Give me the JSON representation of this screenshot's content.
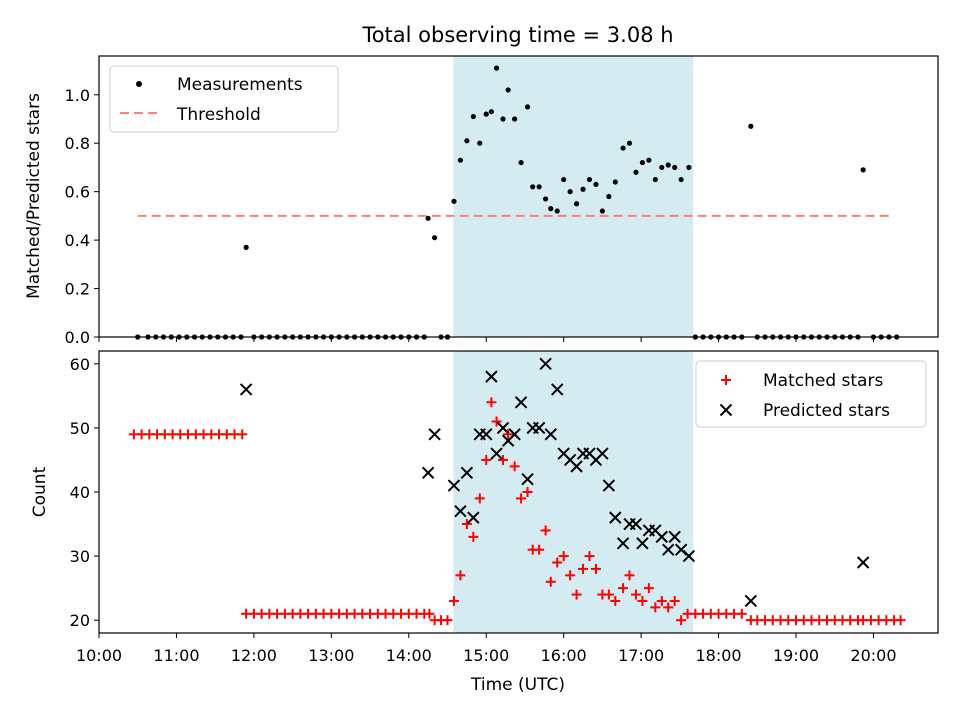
{
  "title": "Total observing time = 3.08 h",
  "chart_data": [
    {
      "type": "scatter",
      "ylabel": "Matched/Predicted stars",
      "xlim": [
        "10:00",
        "20:50"
      ],
      "ylim": [
        0,
        1.16
      ],
      "yticks": [
        0.0,
        0.2,
        0.4,
        0.6,
        0.8,
        1.0
      ],
      "ytick_labels": [
        "0.0",
        "0.2",
        "0.4",
        "0.6",
        "0.8",
        "1.0"
      ],
      "shaded_span": [
        "14:35",
        "17:40"
      ],
      "shade_color": "#add8e6",
      "legend_position": "upper left",
      "series": [
        {
          "name": "Measurements",
          "marker": "dot",
          "color": "#000000",
          "points": [
            [
              "10:30",
              0
            ],
            [
              "10:38",
              0
            ],
            [
              "10:44",
              0
            ],
            [
              "10:50",
              0
            ],
            [
              "10:56",
              0
            ],
            [
              "11:02",
              0
            ],
            [
              "11:08",
              0
            ],
            [
              "11:14",
              0
            ],
            [
              "11:20",
              0
            ],
            [
              "11:26",
              0
            ],
            [
              "11:32",
              0
            ],
            [
              "11:38",
              0
            ],
            [
              "11:44",
              0
            ],
            [
              "11:50",
              0
            ],
            [
              "11:54",
              0.37
            ],
            [
              "12:00",
              0
            ],
            [
              "12:06",
              0
            ],
            [
              "12:12",
              0
            ],
            [
              "12:18",
              0
            ],
            [
              "12:24",
              0
            ],
            [
              "12:30",
              0
            ],
            [
              "12:36",
              0
            ],
            [
              "12:42",
              0
            ],
            [
              "12:48",
              0
            ],
            [
              "12:54",
              0
            ],
            [
              "13:00",
              0
            ],
            [
              "13:06",
              0
            ],
            [
              "13:12",
              0
            ],
            [
              "13:18",
              0
            ],
            [
              "13:24",
              0
            ],
            [
              "13:30",
              0
            ],
            [
              "13:36",
              0
            ],
            [
              "13:42",
              0
            ],
            [
              "13:48",
              0
            ],
            [
              "13:54",
              0
            ],
            [
              "14:00",
              0
            ],
            [
              "14:06",
              0
            ],
            [
              "14:12",
              0
            ],
            [
              "14:15",
              0.49
            ],
            [
              "14:20",
              0.41
            ],
            [
              "14:25",
              0
            ],
            [
              "14:30",
              0
            ],
            [
              "14:35",
              0.56
            ],
            [
              "14:40",
              0.73
            ],
            [
              "14:45",
              0.81
            ],
            [
              "14:50",
              0.91
            ],
            [
              "14:55",
              0.8
            ],
            [
              "15:00",
              0.92
            ],
            [
              "15:04",
              0.93
            ],
            [
              "15:08",
              1.11
            ],
            [
              "15:13",
              0.9
            ],
            [
              "15:17",
              1.02
            ],
            [
              "15:22",
              0.9
            ],
            [
              "15:27",
              0.72
            ],
            [
              "15:32",
              0.95
            ],
            [
              "15:36",
              0.62
            ],
            [
              "15:41",
              0.62
            ],
            [
              "15:46",
              0.57
            ],
            [
              "15:50",
              0.53
            ],
            [
              "15:55",
              0.52
            ],
            [
              "16:00",
              0.65
            ],
            [
              "16:05",
              0.6
            ],
            [
              "16:10",
              0.55
            ],
            [
              "16:15",
              0.61
            ],
            [
              "16:20",
              0.65
            ],
            [
              "16:25",
              0.63
            ],
            [
              "16:30",
              0.52
            ],
            [
              "16:35",
              0.58
            ],
            [
              "16:40",
              0.64
            ],
            [
              "16:46",
              0.78
            ],
            [
              "16:51",
              0.8
            ],
            [
              "16:56",
              0.68
            ],
            [
              "17:01",
              0.72
            ],
            [
              "17:06",
              0.73
            ],
            [
              "17:11",
              0.65
            ],
            [
              "17:16",
              0.7
            ],
            [
              "17:21",
              0.71
            ],
            [
              "17:26",
              0.7
            ],
            [
              "17:31",
              0.65
            ],
            [
              "17:37",
              0.7
            ],
            [
              "17:42",
              0
            ],
            [
              "17:48",
              0
            ],
            [
              "17:54",
              0
            ],
            [
              "18:00",
              0
            ],
            [
              "18:06",
              0
            ],
            [
              "18:12",
              0
            ],
            [
              "18:18",
              0
            ],
            [
              "18:25",
              0.87
            ],
            [
              "18:30",
              0
            ],
            [
              "18:36",
              0
            ],
            [
              "18:42",
              0
            ],
            [
              "18:48",
              0
            ],
            [
              "18:54",
              0
            ],
            [
              "19:00",
              0
            ],
            [
              "19:06",
              0
            ],
            [
              "19:12",
              0
            ],
            [
              "19:18",
              0
            ],
            [
              "19:24",
              0
            ],
            [
              "19:30",
              0
            ],
            [
              "19:36",
              0
            ],
            [
              "19:42",
              0
            ],
            [
              "19:48",
              0
            ],
            [
              "19:52",
              0.69
            ],
            [
              "20:00",
              0
            ],
            [
              "20:06",
              0
            ],
            [
              "20:12",
              0
            ],
            [
              "20:18",
              0
            ]
          ]
        },
        {
          "name": "Threshold",
          "marker": "dashed-line",
          "color": "#ff7f7f",
          "x_range": [
            "10:30",
            "20:15"
          ],
          "y": 0.5
        }
      ]
    },
    {
      "type": "scatter",
      "xlabel": "Time (UTC)",
      "ylabel": "Count",
      "xlim": [
        "10:00",
        "20:50"
      ],
      "ylim": [
        18,
        62
      ],
      "yticks": [
        20,
        30,
        40,
        50,
        60
      ],
      "xticks": [
        "10:00",
        "11:00",
        "12:00",
        "13:00",
        "14:00",
        "15:00",
        "16:00",
        "17:00",
        "18:00",
        "19:00",
        "20:00"
      ],
      "shaded_span": [
        "14:35",
        "17:40"
      ],
      "shade_color": "#add8e6",
      "legend_position": "upper right",
      "series": [
        {
          "name": "Matched stars",
          "marker": "plus",
          "color": "#ff0000",
          "points": [
            [
              "10:27",
              49
            ],
            [
              "10:33",
              49
            ],
            [
              "10:39",
              49
            ],
            [
              "10:45",
              49
            ],
            [
              "10:51",
              49
            ],
            [
              "10:57",
              49
            ],
            [
              "11:03",
              49
            ],
            [
              "11:09",
              49
            ],
            [
              "11:15",
              49
            ],
            [
              "11:21",
              49
            ],
            [
              "11:27",
              49
            ],
            [
              "11:33",
              49
            ],
            [
              "11:39",
              49
            ],
            [
              "11:45",
              49
            ],
            [
              "11:51",
              49
            ],
            [
              "11:54",
              21
            ],
            [
              "12:00",
              21
            ],
            [
              "12:06",
              21
            ],
            [
              "12:12",
              21
            ],
            [
              "12:18",
              21
            ],
            [
              "12:24",
              21
            ],
            [
              "12:30",
              21
            ],
            [
              "12:36",
              21
            ],
            [
              "12:42",
              21
            ],
            [
              "12:48",
              21
            ],
            [
              "12:54",
              21
            ],
            [
              "13:00",
              21
            ],
            [
              "13:06",
              21
            ],
            [
              "13:12",
              21
            ],
            [
              "13:18",
              21
            ],
            [
              "13:24",
              21
            ],
            [
              "13:30",
              21
            ],
            [
              "13:36",
              21
            ],
            [
              "13:42",
              21
            ],
            [
              "13:48",
              21
            ],
            [
              "13:54",
              21
            ],
            [
              "14:00",
              21
            ],
            [
              "14:06",
              21
            ],
            [
              "14:12",
              21
            ],
            [
              "14:16",
              21
            ],
            [
              "14:20",
              20
            ],
            [
              "14:25",
              20
            ],
            [
              "14:30",
              20
            ],
            [
              "14:35",
              23
            ],
            [
              "14:40",
              27
            ],
            [
              "14:45",
              35
            ],
            [
              "14:50",
              33
            ],
            [
              "14:55",
              39
            ],
            [
              "15:00",
              45
            ],
            [
              "15:04",
              54
            ],
            [
              "15:08",
              51
            ],
            [
              "15:13",
              45
            ],
            [
              "15:17",
              49
            ],
            [
              "15:22",
              44
            ],
            [
              "15:27",
              39
            ],
            [
              "15:32",
              40
            ],
            [
              "15:36",
              31
            ],
            [
              "15:41",
              31
            ],
            [
              "15:46",
              34
            ],
            [
              "15:50",
              26
            ],
            [
              "15:55",
              29
            ],
            [
              "16:00",
              30
            ],
            [
              "16:05",
              27
            ],
            [
              "16:10",
              24
            ],
            [
              "16:15",
              28
            ],
            [
              "16:20",
              30
            ],
            [
              "16:25",
              28
            ],
            [
              "16:30",
              24
            ],
            [
              "16:35",
              24
            ],
            [
              "16:40",
              23
            ],
            [
              "16:46",
              25
            ],
            [
              "16:51",
              27
            ],
            [
              "16:56",
              24
            ],
            [
              "17:01",
              23
            ],
            [
              "17:06",
              25
            ],
            [
              "17:11",
              22
            ],
            [
              "17:16",
              23
            ],
            [
              "17:21",
              22
            ],
            [
              "17:26",
              23
            ],
            [
              "17:31",
              20
            ],
            [
              "17:36",
              21
            ],
            [
              "17:42",
              21
            ],
            [
              "17:48",
              21
            ],
            [
              "17:54",
              21
            ],
            [
              "18:00",
              21
            ],
            [
              "18:06",
              21
            ],
            [
              "18:12",
              21
            ],
            [
              "18:18",
              21
            ],
            [
              "18:25",
              20
            ],
            [
              "18:30",
              20
            ],
            [
              "18:36",
              20
            ],
            [
              "18:42",
              20
            ],
            [
              "18:48",
              20
            ],
            [
              "18:54",
              20
            ],
            [
              "19:00",
              20
            ],
            [
              "19:06",
              20
            ],
            [
              "19:12",
              20
            ],
            [
              "19:18",
              20
            ],
            [
              "19:24",
              20
            ],
            [
              "19:30",
              20
            ],
            [
              "19:36",
              20
            ],
            [
              "19:42",
              20
            ],
            [
              "19:48",
              20
            ],
            [
              "19:52",
              20
            ],
            [
              "19:58",
              20
            ],
            [
              "20:04",
              20
            ],
            [
              "20:10",
              20
            ],
            [
              "20:16",
              20
            ],
            [
              "20:21",
              20
            ]
          ]
        },
        {
          "name": "Predicted stars",
          "marker": "x",
          "color": "#000000",
          "points": [
            [
              "11:54",
              56
            ],
            [
              "14:15",
              43
            ],
            [
              "14:20",
              49
            ],
            [
              "14:35",
              41
            ],
            [
              "14:40",
              37
            ],
            [
              "14:45",
              43
            ],
            [
              "14:50",
              36
            ],
            [
              "14:55",
              49
            ],
            [
              "15:00",
              49
            ],
            [
              "15:04",
              58
            ],
            [
              "15:08",
              46
            ],
            [
              "15:13",
              50
            ],
            [
              "15:17",
              48
            ],
            [
              "15:22",
              49
            ],
            [
              "15:27",
              54
            ],
            [
              "15:32",
              42
            ],
            [
              "15:36",
              50
            ],
            [
              "15:41",
              50
            ],
            [
              "15:46",
              60
            ],
            [
              "15:50",
              49
            ],
            [
              "15:55",
              56
            ],
            [
              "16:00",
              46
            ],
            [
              "16:05",
              45
            ],
            [
              "16:10",
              44
            ],
            [
              "16:15",
              46
            ],
            [
              "16:20",
              46
            ],
            [
              "16:25",
              45
            ],
            [
              "16:30",
              46
            ],
            [
              "16:35",
              41
            ],
            [
              "16:40",
              36
            ],
            [
              "16:46",
              32
            ],
            [
              "16:51",
              35
            ],
            [
              "16:56",
              35
            ],
            [
              "17:01",
              32
            ],
            [
              "17:06",
              34
            ],
            [
              "17:11",
              34
            ],
            [
              "17:16",
              33
            ],
            [
              "17:21",
              31
            ],
            [
              "17:26",
              33
            ],
            [
              "17:31",
              31
            ],
            [
              "17:37",
              30
            ],
            [
              "18:25",
              23
            ],
            [
              "19:52",
              29
            ]
          ]
        }
      ]
    }
  ]
}
